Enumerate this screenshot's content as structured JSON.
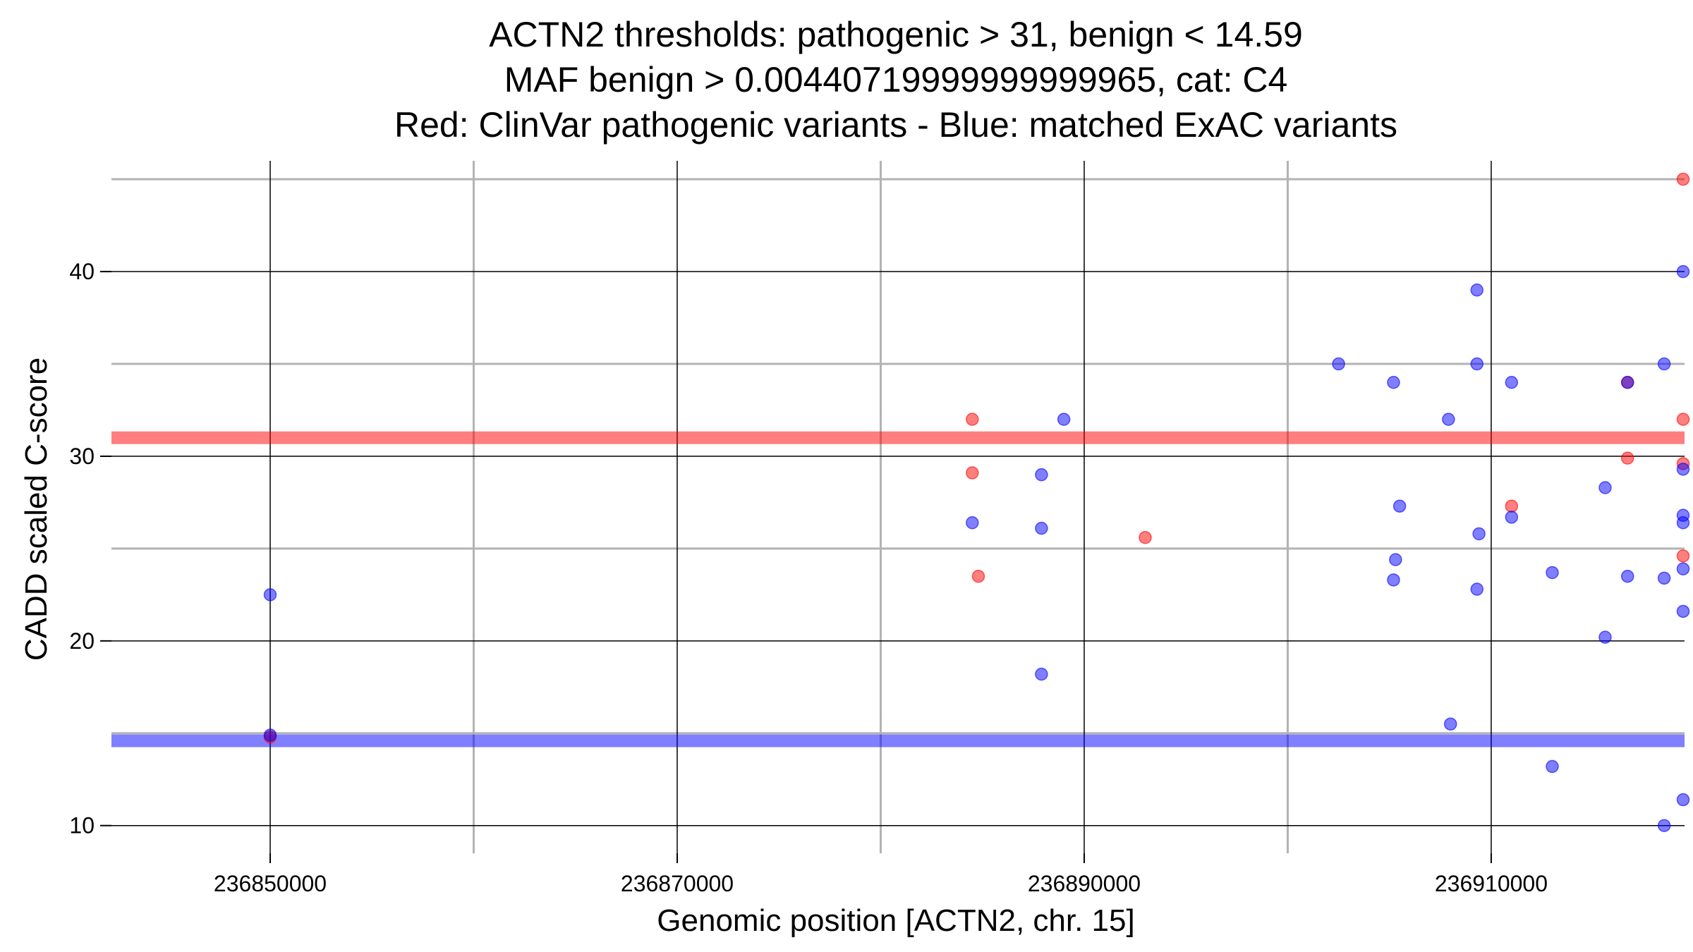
{
  "chart_data": {
    "type": "scatter",
    "title_lines": [
      "ACTN2 thresholds: pathogenic > 31, benign < 14.59",
      "MAF benign > 0.00440719999999999965, cat: C4",
      "Red: ClinVar pathogenic variants - Blue: matched ExAC variants"
    ],
    "xlabel": "Genomic position [ACTN2, chr. 15]",
    "ylabel": "CADD scaled C-score",
    "xlim": [
      236842200,
      236919500
    ],
    "ylim": [
      8.5,
      46
    ],
    "x_ticks": [
      236850000,
      236870000,
      236890000,
      236910000
    ],
    "x_tick_labels": [
      "236850000",
      "236870000",
      "236890000",
      "236910000"
    ],
    "x_minor_ticks": [
      236860000,
      236880000,
      236900000,
      236920000
    ],
    "y_ticks": [
      10,
      20,
      30,
      40
    ],
    "y_tick_labels": [
      "10",
      "20",
      "30",
      "40"
    ],
    "y_minor_ticks": [
      15,
      25,
      35,
      45
    ],
    "grid": true,
    "thresholds": [
      {
        "axis": "y",
        "value": 31,
        "color": "#ff0000"
      },
      {
        "axis": "y",
        "value": 14.59,
        "color": "#0000ff"
      }
    ],
    "colors": {
      "pathogenic": "#ff0000",
      "benign": "#0000ff"
    },
    "series": [
      {
        "key": "pathogenic",
        "color": "#ff0000",
        "points": [
          {
            "x": 236850000,
            "y": 14.8
          },
          {
            "x": 236884500,
            "y": 32.0
          },
          {
            "x": 236884500,
            "y": 29.1
          },
          {
            "x": 236884800,
            "y": 23.5
          },
          {
            "x": 236893000,
            "y": 25.6
          },
          {
            "x": 236911000,
            "y": 27.3
          },
          {
            "x": 236916700,
            "y": 34.0
          },
          {
            "x": 236916700,
            "y": 29.9
          },
          {
            "x": 236920100,
            "y": 32.0
          },
          {
            "x": 236925700,
            "y": 45.0
          },
          {
            "x": 236925700,
            "y": 29.6
          },
          {
            "x": 236925700,
            "y": 24.6
          }
        ]
      },
      {
        "key": "benign",
        "color": "#0000ff",
        "points": [
          {
            "x": 236850000,
            "y": 22.5
          },
          {
            "x": 236850000,
            "y": 14.9
          },
          {
            "x": 236884500,
            "y": 26.4
          },
          {
            "x": 236887900,
            "y": 29.0
          },
          {
            "x": 236887900,
            "y": 26.1
          },
          {
            "x": 236887900,
            "y": 18.2
          },
          {
            "x": 236889000,
            "y": 32.0
          },
          {
            "x": 236902500,
            "y": 35.0
          },
          {
            "x": 236905200,
            "y": 34.0
          },
          {
            "x": 236905500,
            "y": 27.3
          },
          {
            "x": 236905300,
            "y": 24.4
          },
          {
            "x": 236905200,
            "y": 23.3
          },
          {
            "x": 236907900,
            "y": 32.0
          },
          {
            "x": 236908000,
            "y": 15.5
          },
          {
            "x": 236909300,
            "y": 39.0
          },
          {
            "x": 236909300,
            "y": 35.0
          },
          {
            "x": 236909400,
            "y": 25.8
          },
          {
            "x": 236909300,
            "y": 22.8
          },
          {
            "x": 236911000,
            "y": 34.0
          },
          {
            "x": 236911000,
            "y": 26.7
          },
          {
            "x": 236913000,
            "y": 23.7
          },
          {
            "x": 236913000,
            "y": 13.2
          },
          {
            "x": 236915600,
            "y": 28.3
          },
          {
            "x": 236915600,
            "y": 20.2
          },
          {
            "x": 236916700,
            "y": 34.0
          },
          {
            "x": 236916700,
            "y": 23.5
          },
          {
            "x": 236918500,
            "y": 35.0
          },
          {
            "x": 236918500,
            "y": 23.4
          },
          {
            "x": 236918500,
            "y": 10.0
          },
          {
            "x": 236920100,
            "y": 26.8
          },
          {
            "x": 236920100,
            "y": 26.4
          },
          {
            "x": 236923700,
            "y": 40.0
          },
          {
            "x": 236923700,
            "y": 29.3
          },
          {
            "x": 236923700,
            "y": 21.6
          },
          {
            "x": 236925700,
            "y": 23.9
          },
          {
            "x": 236925700,
            "y": 11.4
          }
        ]
      }
    ]
  }
}
